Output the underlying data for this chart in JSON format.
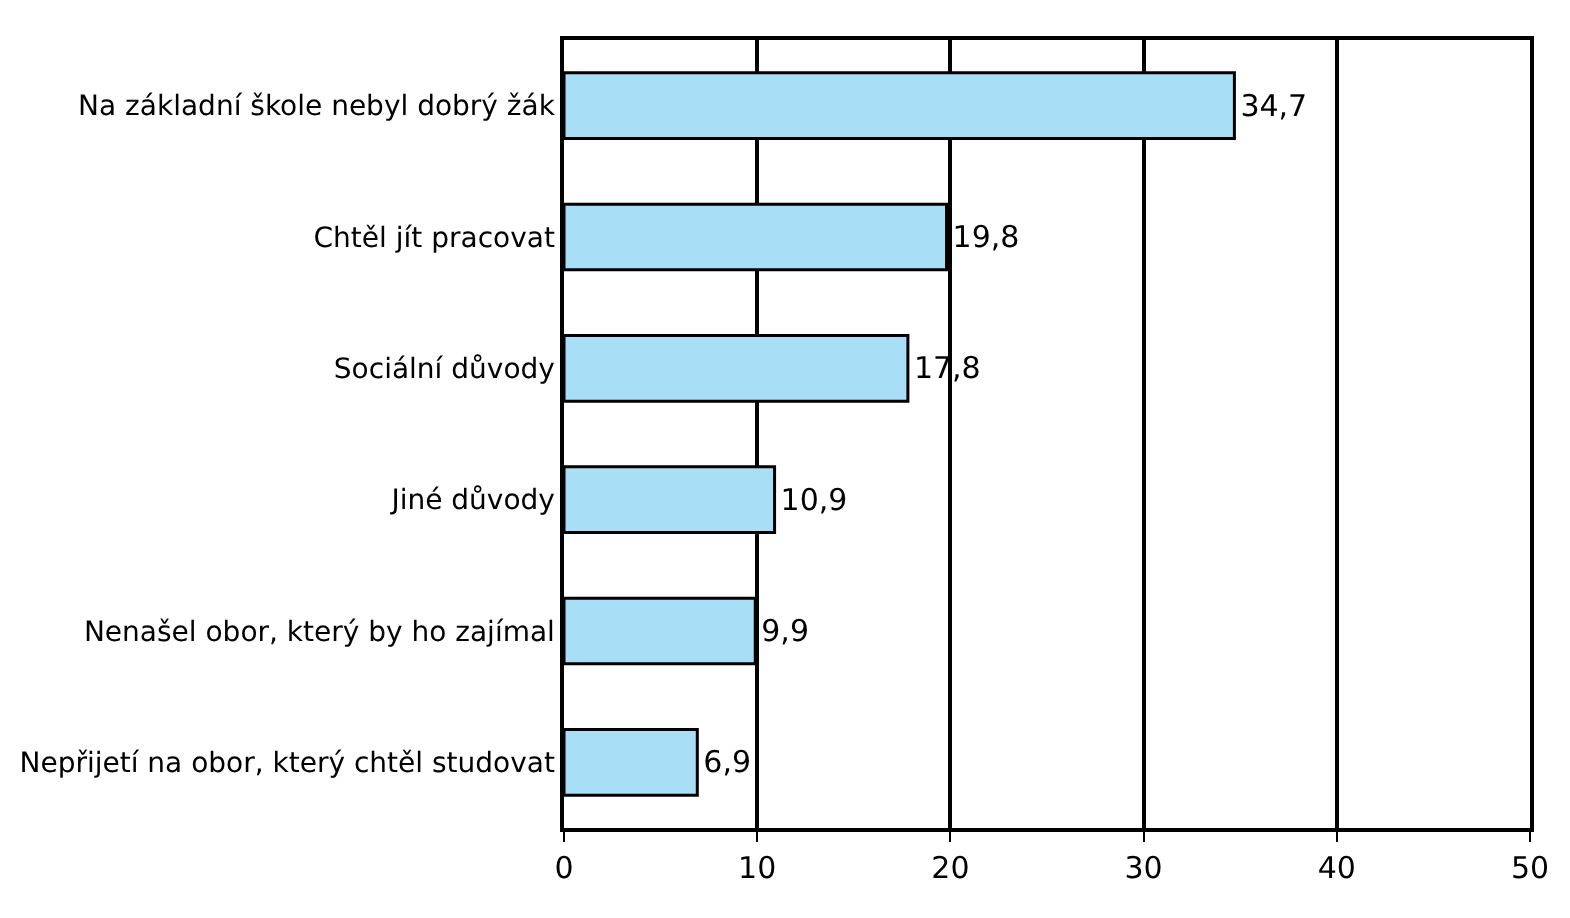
{
  "chart_data": {
    "type": "bar",
    "orientation": "horizontal",
    "categories": [
      "Na základní škole nebyl dobrý žák",
      "Chtěl jít pracovat",
      "Sociální důvody",
      "Jiné důvody",
      "Nenašel obor, který by ho zajímal",
      "Nepřijetí na obor, který chtěl studovat"
    ],
    "values": [
      34.7,
      19.8,
      17.8,
      10.9,
      9.9,
      6.9
    ],
    "value_labels": [
      "34,7",
      "19,8",
      "17,8",
      "10,9",
      "9,9",
      "6,9"
    ],
    "color": "#a9def7",
    "xlim": [
      0,
      50
    ],
    "xticks": [
      0,
      10,
      20,
      30,
      40,
      50
    ],
    "grid": "x"
  }
}
